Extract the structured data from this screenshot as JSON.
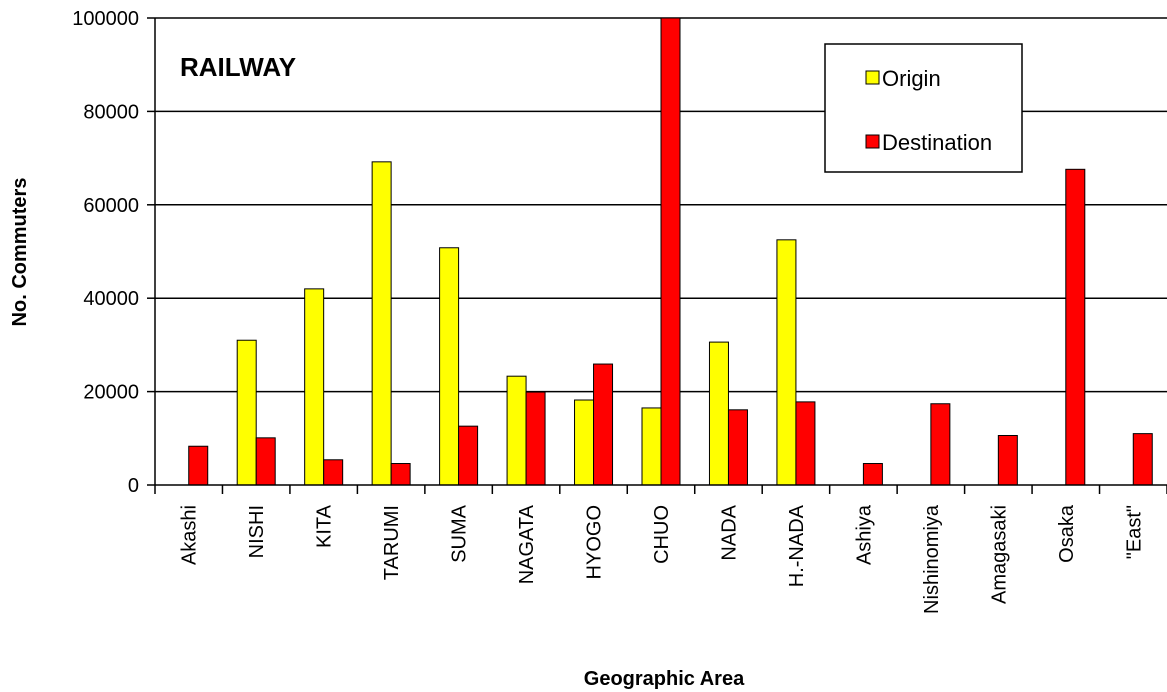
{
  "chart_data": {
    "type": "bar",
    "title": "RAILWAY",
    "xlabel": "Geographic Area",
    "ylabel": "No. Commuters",
    "ylim": [
      0,
      100000
    ],
    "yticks": [
      0,
      20000,
      40000,
      60000,
      80000,
      100000
    ],
    "grid": true,
    "legend_position": "top-right",
    "categories": [
      "Akashi",
      "NISHI",
      "KITA",
      "TARUMI",
      "SUMA",
      "NAGATA",
      "HYOGO",
      "CHUO",
      "NADA",
      "H.-NADA",
      "Ashiya",
      "Nishinomiya",
      "Amagasaki",
      "Osaka",
      "\"East\""
    ],
    "series": [
      {
        "name": "Origin",
        "color": "#ffff00",
        "values": [
          0,
          31000,
          42000,
          69200,
          50800,
          23300,
          18200,
          16500,
          30600,
          52500,
          0,
          0,
          0,
          0,
          0
        ]
      },
      {
        "name": "Destination",
        "color": "#ff0000",
        "values": [
          8300,
          10100,
          5400,
          4600,
          12600,
          19900,
          25900,
          100000,
          16100,
          17800,
          4600,
          17400,
          10600,
          67600,
          11000
        ]
      }
    ]
  }
}
